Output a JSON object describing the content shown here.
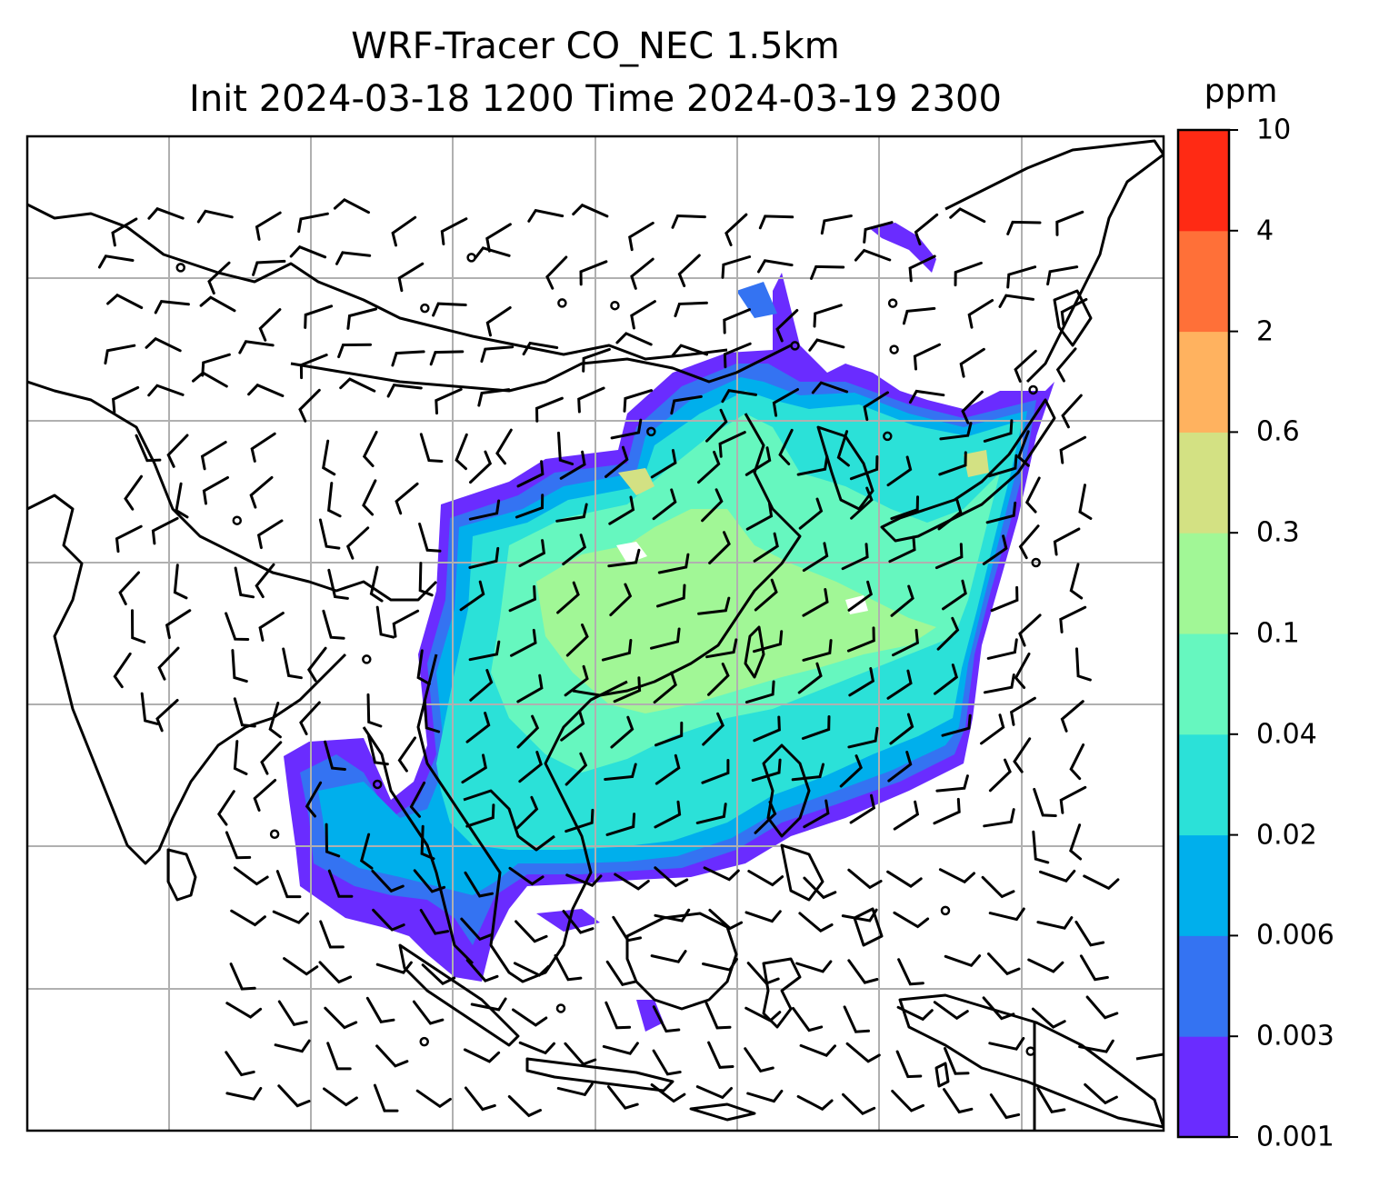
{
  "title": {
    "line1": "WRF-Tracer CO_NEC 1.5km",
    "line2": "Init 2024-03-18 1200 Time 2024-03-19 2300"
  },
  "colorbar": {
    "unit": "ppm",
    "ticks": [
      "10",
      "4",
      "2",
      "0.6",
      "0.3",
      "0.1",
      "0.04",
      "0.02",
      "0.006",
      "0.003",
      "0.001"
    ],
    "colors": [
      "#6a2cff",
      "#3473f2",
      "#00afec",
      "#2be1d8",
      "#66f7bf",
      "#a1f796",
      "#d3e183",
      "#ffb25f",
      "#ff7038",
      "#ff2a14"
    ]
  },
  "map": {
    "gridlines": true,
    "coastline_color": "#000000",
    "grid_color": "#b0b0b0",
    "wind_barb_color": "#000000"
  }
}
